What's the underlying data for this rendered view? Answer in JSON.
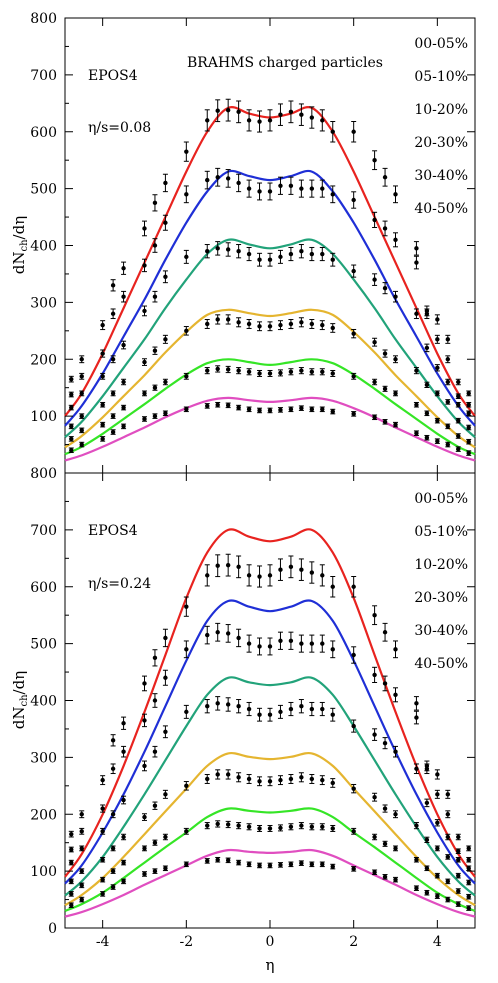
{
  "chart_data": [
    {
      "type": "line",
      "title": "BRAHMS charged particles",
      "model_label": "EPOS4",
      "param_label": "η/s=0.08",
      "xlabel": "",
      "ylabel": "dN_ch/dη",
      "ylim": [
        0,
        800
      ],
      "xlim": [
        -4.9,
        4.9
      ],
      "yticks": [
        100,
        200,
        300,
        400,
        500,
        600,
        700,
        800
      ],
      "xticks": [
        -4,
        -2,
        0,
        2,
        4
      ],
      "legend": [
        "00-05%",
        "05-10%",
        "10-20%",
        "20-30%",
        "30-40%",
        "40-50%"
      ],
      "x": [
        -4.9,
        -4.5,
        -4,
        -3.5,
        -3,
        -2.5,
        -2,
        -1.5,
        -1,
        -0.5,
        0,
        0.5,
        1,
        1.5,
        2,
        2.5,
        3,
        3.5,
        4,
        4.5,
        4.9
      ],
      "series": [
        {
          "name": "00-05%",
          "color": "#e8231f",
          "values": [
            100,
            140,
            210,
            290,
            370,
            450,
            530,
            600,
            642,
            632,
            625,
            632,
            642,
            600,
            530,
            450,
            370,
            290,
            210,
            140,
            100
          ]
        },
        {
          "name": "05-10%",
          "color": "#1f2fd6",
          "values": [
            83,
            118,
            175,
            240,
            305,
            375,
            440,
            495,
            530,
            522,
            515,
            522,
            530,
            495,
            440,
            375,
            305,
            240,
            175,
            118,
            83
          ]
        },
        {
          "name": "10-20%",
          "color": "#22a37a",
          "values": [
            63,
            90,
            135,
            185,
            235,
            290,
            340,
            385,
            410,
            402,
            395,
            402,
            410,
            385,
            340,
            290,
            235,
            185,
            135,
            90,
            63
          ]
        },
        {
          "name": "20-30%",
          "color": "#e5b530",
          "values": [
            45,
            65,
            98,
            135,
            172,
            212,
            248,
            278,
            287,
            281,
            276,
            281,
            287,
            278,
            248,
            212,
            172,
            135,
            98,
            65,
            45
          ]
        },
        {
          "name": "30-40%",
          "color": "#35e526",
          "values": [
            33,
            46,
            69,
            95,
            121,
            148,
            173,
            193,
            200,
            195,
            190,
            195,
            200,
            193,
            173,
            148,
            121,
            95,
            69,
            46,
            33
          ]
        },
        {
          "name": "40-50%",
          "color": "#e04ec0",
          "values": [
            22,
            31,
            46,
            63,
            80,
            98,
            114,
            127,
            132,
            128,
            125,
            128,
            132,
            127,
            114,
            98,
            80,
            63,
            46,
            31,
            22
          ]
        }
      ],
      "data_points": {
        "x": [
          -4.75,
          -4.5,
          -4.0,
          -3.75,
          -3.5,
          -3.0,
          -2.75,
          -2.5,
          -2.0,
          -1.5,
          -1.25,
          -1.0,
          -0.75,
          -0.5,
          -0.25,
          0.0,
          0.25,
          0.5,
          0.75,
          1.0,
          1.25,
          1.5,
          2.0,
          2.5,
          2.75,
          3.0,
          3.5,
          3.75,
          4.0,
          4.25,
          4.5,
          4.75
        ],
        "series": [
          {
            "name": "00-05%",
            "values": [
              165,
              200,
              260,
              330,
              360,
              430,
              475,
              510,
              565,
              620,
              637,
              638,
              635,
              620,
              618,
              620,
              630,
              635,
              630,
              625,
              620,
              600,
              600,
              550,
              520,
              490,
              395,
              285,
              270,
              235,
              160,
              140
            ]
          },
          {
            "name": "05-10%",
            "values": [
              138,
              170,
              210,
              280,
              310,
              365,
              400,
              440,
              490,
              515,
              520,
              518,
              510,
              500,
              495,
              495,
              505,
              505,
              500,
              500,
              500,
              490,
              480,
              445,
              430,
              410,
              370,
              280,
              235,
              200,
              135,
              120
            ]
          },
          {
            "name": "10-20%",
            "values": [
              115,
              140,
              170,
              200,
              225,
              285,
              310,
              345,
              380,
              390,
              395,
              393,
              390,
              385,
              375,
              375,
              380,
              385,
              390,
              385,
              385,
              375,
              355,
              340,
              325,
              310,
              280,
              220,
              185,
              160,
              120,
              105
            ]
          },
          {
            "name": "20-30%",
            "values": [
              82,
              100,
              120,
              140,
              160,
              195,
              215,
              235,
              250,
              262,
              270,
              270,
              265,
              262,
              258,
              258,
              260,
              262,
              265,
              262,
              260,
              255,
              245,
              230,
              210,
              200,
              180,
              155,
              140,
              125,
              92,
              80
            ]
          },
          {
            "name": "30-40%",
            "values": [
              60,
              75,
              85,
              100,
              115,
              140,
              150,
              160,
              170,
              180,
              183,
              182,
              180,
              178,
              175,
              175,
              176,
              178,
              180,
              178,
              178,
              175,
              170,
              160,
              148,
              140,
              120,
              105,
              92,
              82,
              65,
              55
            ]
          },
          {
            "name": "40-50%",
            "values": [
              40,
              50,
              60,
              72,
              82,
              95,
              100,
              105,
              112,
              118,
              120,
              119,
              115,
              112,
              110,
              110,
              111,
              112,
              114,
              112,
              112,
              108,
              104,
              98,
              90,
              85,
              70,
              62,
              56,
              50,
              42,
              35
            ]
          }
        ]
      }
    },
    {
      "type": "line",
      "title": "",
      "model_label": "EPOS4",
      "param_label": "η/s=0.24",
      "xlabel": "η",
      "ylabel": "dN_ch/dη",
      "ylim": [
        0,
        800
      ],
      "xlim": [
        -4.9,
        4.9
      ],
      "yticks": [
        0,
        100,
        200,
        300,
        400,
        500,
        600,
        700,
        800
      ],
      "xticks": [
        -4,
        -2,
        0,
        2,
        4
      ],
      "legend": [
        "00-05%",
        "05-10%",
        "10-20%",
        "20-30%",
        "30-40%",
        "40-50%"
      ],
      "x": [
        -4.9,
        -4.5,
        -4,
        -3.5,
        -3,
        -2.5,
        -2,
        -1.5,
        -1,
        -0.5,
        0,
        0.5,
        1,
        1.5,
        2,
        2.5,
        3,
        3.5,
        4,
        4.5,
        4.9
      ],
      "series": [
        {
          "name": "00-05%",
          "color": "#e8231f",
          "values": [
            90,
            130,
            200,
            285,
            380,
            480,
            580,
            660,
            700,
            688,
            680,
            688,
            700,
            660,
            580,
            480,
            380,
            285,
            200,
            130,
            90
          ]
        },
        {
          "name": "05-10%",
          "color": "#1f2fd6",
          "values": [
            78,
            110,
            168,
            235,
            310,
            390,
            470,
            540,
            575,
            565,
            557,
            565,
            575,
            540,
            470,
            390,
            310,
            235,
            168,
            110,
            78
          ]
        },
        {
          "name": "10-20%",
          "color": "#22a37a",
          "values": [
            57,
            82,
            125,
            178,
            235,
            295,
            355,
            410,
            440,
            432,
            427,
            432,
            440,
            410,
            355,
            295,
            235,
            178,
            125,
            82,
            57
          ]
        },
        {
          "name": "20-30%",
          "color": "#e5b530",
          "values": [
            40,
            58,
            88,
            125,
            165,
            205,
            245,
            285,
            307,
            301,
            297,
            301,
            307,
            285,
            245,
            205,
            165,
            125,
            88,
            58,
            40
          ]
        },
        {
          "name": "30-40%",
          "color": "#35e526",
          "values": [
            30,
            42,
            62,
            88,
            115,
            142,
            168,
            195,
            210,
            206,
            203,
            206,
            210,
            195,
            168,
            142,
            115,
            88,
            62,
            42,
            30
          ]
        },
        {
          "name": "40-50%",
          "color": "#e04ec0",
          "values": [
            20,
            28,
            42,
            58,
            76,
            93,
            110,
            127,
            137,
            134,
            132,
            134,
            137,
            127,
            110,
            93,
            76,
            58,
            42,
            28,
            20
          ]
        }
      ],
      "data_points": {
        "x": [
          -4.75,
          -4.5,
          -4.0,
          -3.75,
          -3.5,
          -3.0,
          -2.75,
          -2.5,
          -2.0,
          -1.5,
          -1.25,
          -1.0,
          -0.75,
          -0.5,
          -0.25,
          0.0,
          0.25,
          0.5,
          0.75,
          1.0,
          1.25,
          1.5,
          2.0,
          2.5,
          2.75,
          3.0,
          3.5,
          3.75,
          4.0,
          4.25,
          4.5,
          4.75
        ],
        "series": [
          {
            "name": "00-05%",
            "values": [
              165,
              200,
              260,
              330,
              360,
              430,
              475,
              510,
              565,
              620,
              637,
              638,
              635,
              620,
              618,
              620,
              630,
              635,
              630,
              625,
              620,
              600,
              600,
              550,
              520,
              490,
              395,
              285,
              270,
              235,
              160,
              140
            ]
          },
          {
            "name": "05-10%",
            "values": [
              138,
              170,
              210,
              280,
              310,
              365,
              400,
              440,
              490,
              515,
              520,
              518,
              510,
              500,
              495,
              495,
              505,
              505,
              500,
              500,
              500,
              490,
              480,
              445,
              430,
              410,
              370,
              280,
              235,
              200,
              135,
              120
            ]
          },
          {
            "name": "10-20%",
            "values": [
              115,
              140,
              170,
              200,
              225,
              285,
              310,
              345,
              380,
              390,
              395,
              393,
              390,
              385,
              375,
              375,
              380,
              385,
              390,
              385,
              385,
              375,
              355,
              340,
              325,
              310,
              280,
              220,
              185,
              160,
              120,
              105
            ]
          },
          {
            "name": "20-30%",
            "values": [
              82,
              100,
              120,
              140,
              160,
              195,
              215,
              235,
              250,
              262,
              270,
              270,
              265,
              262,
              258,
              258,
              260,
              262,
              265,
              262,
              260,
              255,
              245,
              230,
              210,
              200,
              180,
              155,
              140,
              125,
              92,
              80
            ]
          },
          {
            "name": "30-40%",
            "values": [
              60,
              75,
              85,
              100,
              115,
              140,
              150,
              160,
              170,
              180,
              183,
              182,
              180,
              178,
              175,
              175,
              176,
              178,
              180,
              178,
              178,
              175,
              170,
              160,
              148,
              140,
              120,
              105,
              92,
              82,
              65,
              55
            ]
          },
          {
            "name": "40-50%",
            "values": [
              40,
              50,
              60,
              72,
              82,
              95,
              100,
              105,
              112,
              118,
              120,
              119,
              115,
              112,
              110,
              110,
              111,
              112,
              114,
              112,
              112,
              108,
              104,
              98,
              90,
              85,
              70,
              62,
              56,
              50,
              42,
              35
            ]
          }
        ]
      }
    }
  ]
}
